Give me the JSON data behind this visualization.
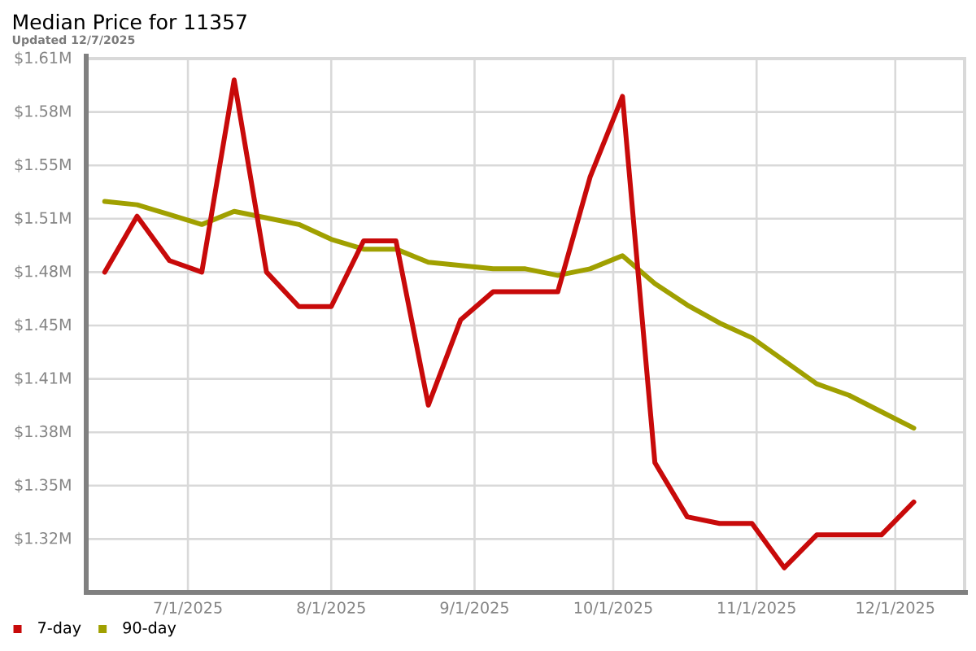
{
  "chart_data": {
    "type": "line",
    "title": "Median Price for 11357",
    "subtitle": "Updated 12/7/2025",
    "x": [
      "2025-06-13",
      "2025-06-20",
      "2025-06-27",
      "2025-07-04",
      "2025-07-11",
      "2025-07-18",
      "2025-07-25",
      "2025-08-01",
      "2025-08-08",
      "2025-08-15",
      "2025-08-22",
      "2025-08-29",
      "2025-09-05",
      "2025-09-12",
      "2025-09-19",
      "2025-09-26",
      "2025-10-03",
      "2025-10-10",
      "2025-10-17",
      "2025-10-24",
      "2025-10-31",
      "2025-11-07",
      "2025-11-14",
      "2025-11-21",
      "2025-11-28",
      "2025-12-05"
    ],
    "series": [
      {
        "name": "7-day",
        "color": "#c80a0a",
        "values": [
          1.48,
          1.514,
          1.487,
          1.48,
          1.597,
          1.48,
          1.459,
          1.459,
          1.499,
          1.499,
          1.399,
          1.451,
          1.468,
          1.468,
          1.468,
          1.538,
          1.587,
          1.364,
          1.331,
          1.327,
          1.327,
          1.3,
          1.32,
          1.32,
          1.32,
          1.34
        ]
      },
      {
        "name": "90-day",
        "color": "#a0a000",
        "values": [
          1.523,
          1.521,
          1.515,
          1.509,
          1.517,
          1.513,
          1.509,
          1.5,
          1.494,
          1.494,
          1.486,
          1.484,
          1.482,
          1.482,
          1.478,
          1.482,
          1.49,
          1.473,
          1.46,
          1.449,
          1.44,
          1.426,
          1.412,
          1.405,
          1.395,
          1.385
        ]
      }
    ],
    "xlim": [
      "2025-06-09",
      "2025-12-16"
    ],
    "xticks": [
      {
        "value": "2025-07-01",
        "label": "7/1/2025"
      },
      {
        "value": "2025-08-01",
        "label": "8/1/2025"
      },
      {
        "value": "2025-09-01",
        "label": "9/1/2025"
      },
      {
        "value": "2025-10-01",
        "label": "10/1/2025"
      },
      {
        "value": "2025-11-01",
        "label": "11/1/2025"
      },
      {
        "value": "2025-12-01",
        "label": "12/1/2025"
      }
    ],
    "ylim": [
      1.285,
      1.61
    ],
    "yticks": [
      {
        "value": 1.3175,
        "label": "$1.32M"
      },
      {
        "value": 1.35,
        "label": "$1.35M"
      },
      {
        "value": 1.3825,
        "label": "$1.38M"
      },
      {
        "value": 1.415,
        "label": "$1.41M"
      },
      {
        "value": 1.4475,
        "label": "$1.45M"
      },
      {
        "value": 1.48,
        "label": "$1.48M"
      },
      {
        "value": 1.5125,
        "label": "$1.51M"
      },
      {
        "value": 1.545,
        "label": "$1.55M"
      },
      {
        "value": 1.5775,
        "label": "$1.58M"
      },
      {
        "value": 1.61,
        "label": "$1.61M"
      }
    ],
    "grid": true,
    "legend": "bottom left",
    "line_style": "solid"
  }
}
